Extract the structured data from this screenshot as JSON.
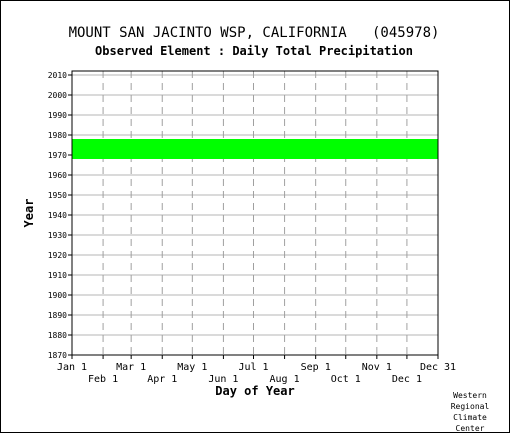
{
  "chart_data": {
    "type": "bar",
    "title": "MOUNT SAN JACINTO WSP, CALIFORNIA   (045978)",
    "subtitle": "Observed Element : Daily Total Precipitation",
    "xlabel": "Day of Year",
    "ylabel": "Year",
    "ylim": [
      1870,
      2012
    ],
    "xlim_days": [
      1,
      366
    ],
    "y_ticks": [
      1870,
      1880,
      1890,
      1900,
      1910,
      1920,
      1930,
      1940,
      1950,
      1960,
      1970,
      1980,
      1990,
      2000,
      2010
    ],
    "x_ticks_top": [
      {
        "label": "Jan 1",
        "day": 1
      },
      {
        "label": "Mar 1",
        "day": 60
      },
      {
        "label": "May 1",
        "day": 121
      },
      {
        "label": "Jul 1",
        "day": 182
      },
      {
        "label": "Sep 1",
        "day": 244
      },
      {
        "label": "Nov 1",
        "day": 305
      },
      {
        "label": "Dec 31",
        "day": 366
      }
    ],
    "x_ticks_bottom": [
      {
        "label": "Feb 1",
        "day": 32
      },
      {
        "label": "Apr 1",
        "day": 91
      },
      {
        "label": "Jun 1",
        "day": 152
      },
      {
        "label": "Aug 1",
        "day": 213
      },
      {
        "label": "Oct 1",
        "day": 274
      },
      {
        "label": "Dec 1",
        "day": 335
      }
    ],
    "grid": true,
    "data_color": "#00ff00",
    "records": [
      {
        "year_start": 1968,
        "year_end": 1978,
        "day_start": 1,
        "day_end": 366
      }
    ]
  },
  "credit": {
    "line1": "Western",
    "line2": "Regional",
    "line3": "Climate",
    "line4": "Center"
  }
}
